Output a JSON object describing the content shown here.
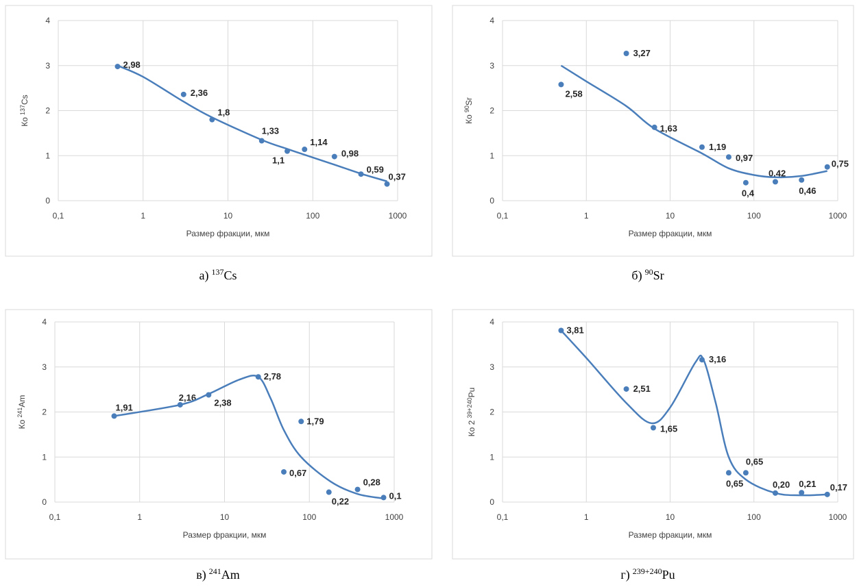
{
  "chart_data": [
    {
      "type": "scatter",
      "x_label": "Размер фракции, мкм",
      "y_label": {
        "prefix": "Ко",
        "sup": "137",
        "text": "Cs"
      },
      "caption": {
        "prefix": "а)",
        "sup": "137",
        "text": "Cs"
      },
      "xscale": "log",
      "grid": true,
      "xlim": [
        0.1,
        1000
      ],
      "xticks": [
        {
          "value": 0.1,
          "label": "0,1"
        },
        1,
        10,
        100,
        1000
      ],
      "ylim": [
        0,
        4
      ],
      "yticks": [
        0,
        1,
        2,
        3,
        4
      ],
      "series": [
        {
          "type": "scatter",
          "color": "#4a7ebb",
          "x": [
            0.5,
            3,
            6.5,
            25,
            50,
            80,
            180,
            370,
            750
          ],
          "values": [
            2.98,
            2.36,
            1.8,
            1.33,
            1.1,
            1.14,
            0.98,
            0.59,
            0.37
          ],
          "value_labels": [
            "2,98",
            "2,36",
            "1,8",
            "1,33",
            "1,1",
            "1,14",
            "0,98",
            "0,59",
            "0,37"
          ]
        },
        {
          "type": "line",
          "color": "#4a7ebb",
          "x": [
            0.5,
            1,
            3,
            6.5,
            25,
            50,
            80,
            180,
            370,
            750
          ],
          "values": [
            3.0,
            2.75,
            2.2,
            1.85,
            1.35,
            1.15,
            1.02,
            0.8,
            0.6,
            0.43
          ]
        }
      ]
    },
    {
      "type": "scatter",
      "x_label": "Размер фракции, мкм",
      "y_label": {
        "prefix": "Ко",
        "sup": "90",
        "text": "Sr"
      },
      "caption": {
        "prefix": "б)",
        "sup": "90",
        "text": "Sr"
      },
      "xscale": "log",
      "grid": true,
      "xlim": [
        0.1,
        1000
      ],
      "xticks": [
        {
          "value": 0.1,
          "label": "0,1"
        },
        1,
        10,
        100,
        1000
      ],
      "ylim": [
        0,
        4
      ],
      "yticks": [
        0,
        1,
        2,
        3,
        4
      ],
      "series": [
        {
          "type": "scatter",
          "color": "#4a7ebb",
          "x": [
            0.5,
            3,
            6.5,
            24,
            50,
            80,
            180,
            370,
            750
          ],
          "values": [
            2.58,
            3.27,
            1.63,
            1.19,
            0.97,
            0.4,
            0.42,
            0.46,
            0.75
          ],
          "value_labels": [
            "2,58",
            "3,27",
            "1,63",
            "1,19",
            "0,97",
            "0,4",
            "0,42",
            "0,46",
            "0,75"
          ]
        },
        {
          "type": "line",
          "color": "#4a7ebb",
          "x": [
            0.5,
            1,
            3,
            6.5,
            24,
            50,
            100,
            180,
            370,
            750
          ],
          "values": [
            3.0,
            2.65,
            2.1,
            1.6,
            1.05,
            0.72,
            0.57,
            0.52,
            0.55,
            0.66
          ]
        }
      ]
    },
    {
      "type": "scatter",
      "x_label": "Размер фракции, мкм",
      "y_label": {
        "prefix": "Ко",
        "sup": "241",
        "text": "Am"
      },
      "caption": {
        "prefix": "в)",
        "sup": "241",
        "text": "Am"
      },
      "xscale": "log",
      "grid": true,
      "xlim": [
        0.1,
        1000
      ],
      "xticks": [
        {
          "value": 0.1,
          "label": "0,1"
        },
        1,
        10,
        100,
        1000
      ],
      "ylim": [
        0,
        4
      ],
      "yticks": [
        0,
        1,
        2,
        3,
        4
      ],
      "series": [
        {
          "type": "scatter",
          "color": "#4a7ebb",
          "x": [
            0.5,
            3,
            6.5,
            25,
            50,
            80,
            170,
            370,
            750
          ],
          "values": [
            1.91,
            2.16,
            2.38,
            2.78,
            0.67,
            1.79,
            0.22,
            0.28,
            0.1
          ],
          "value_labels": [
            "1,91",
            "2,16",
            "2,38",
            "2,78",
            "0,67",
            "1,79",
            "0,22",
            "0,28",
            "0,1"
          ]
        },
        {
          "type": "line",
          "color": "#4a7ebb",
          "x": [
            0.5,
            3,
            6.5,
            15,
            25,
            35,
            50,
            80,
            180,
            370,
            750
          ],
          "values": [
            1.91,
            2.16,
            2.4,
            2.72,
            2.78,
            2.3,
            1.6,
            1.0,
            0.45,
            0.18,
            0.08
          ]
        }
      ]
    },
    {
      "type": "scatter",
      "x_label": "Размер фракции, мкм",
      "y_label": {
        "prefix": "Ко 2",
        "sup": "39+240",
        "text": "Pu"
      },
      "caption": {
        "prefix": "г)",
        "sup": "239+240",
        "text": "Pu"
      },
      "xscale": "log",
      "grid": true,
      "xlim": [
        0.1,
        1000
      ],
      "xticks": [
        {
          "value": 0.1,
          "label": "0,1"
        },
        1,
        10,
        100,
        1000
      ],
      "ylim": [
        0,
        4
      ],
      "yticks": [
        0,
        1,
        2,
        3,
        4
      ],
      "series": [
        {
          "type": "scatter",
          "color": "#4a7ebb",
          "x": [
            0.5,
            3,
            6.3,
            24,
            50,
            80,
            180,
            370,
            750
          ],
          "values": [
            3.81,
            2.51,
            1.65,
            3.16,
            0.65,
            0.65,
            0.2,
            0.21,
            0.17
          ],
          "value_labels": [
            "3,81",
            "2,51",
            "1,65",
            "3,16",
            "0,65",
            "0,65",
            "0,20",
            "0,21",
            "0,17"
          ]
        },
        {
          "type": "line",
          "color": "#4a7ebb",
          "x": [
            0.5,
            1,
            3,
            6,
            10,
            20,
            25,
            35,
            50,
            80,
            180,
            370,
            750
          ],
          "values": [
            3.81,
            3.2,
            2.2,
            1.75,
            2.1,
            3.1,
            3.16,
            2.2,
            1.0,
            0.5,
            0.2,
            0.15,
            0.17
          ]
        }
      ]
    }
  ]
}
